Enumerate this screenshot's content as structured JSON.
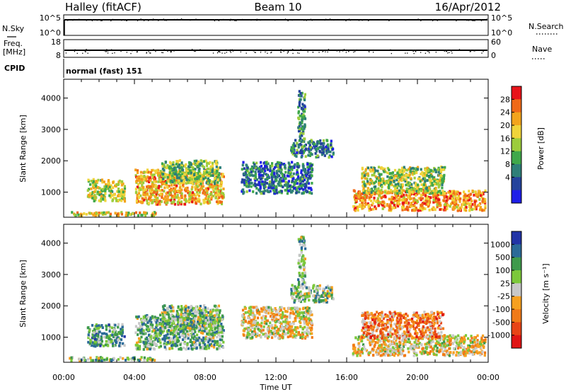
{
  "header": {
    "station": "Halley (fitACF)",
    "beam": "Beam 10",
    "date": "16/Apr/2012"
  },
  "top_panels": {
    "nsky_label": "N.Sky",
    "nsky_ticks": [
      "10^5",
      "10^0"
    ],
    "nsearch_label": "N.Search",
    "nsearch_ticks": [
      "10^5",
      "10^0"
    ],
    "freq_label": "Freq.",
    "freq_unit": "[MHz]",
    "freq_ticks": [
      "18",
      "8"
    ],
    "nave_label": "Nave",
    "nave_ticks": [
      "60",
      "0"
    ],
    "cpid_label": "CPID",
    "cpid_value": "normal (fast) 151"
  },
  "chart_data": [
    {
      "type": "heatmap",
      "name": "power-panel",
      "ylabel": "Slant Range [km]",
      "xlabel": "Time UT",
      "x_ticks": [
        "00:00",
        "04:00",
        "08:00",
        "12:00",
        "16:00",
        "20:00",
        "00:00"
      ],
      "xlim_hours": [
        0,
        24
      ],
      "y_ticks": [
        1000,
        2000,
        3000,
        4000
      ],
      "ylim": [
        200,
        4600
      ],
      "colorbar_label": "Power [dB]",
      "colorbar_ticks": [
        "28",
        "24",
        "20",
        "16",
        "12",
        "8",
        "4"
      ],
      "colorbar_colors": [
        "#e8141a",
        "#f06a18",
        "#f3a41c",
        "#f0d43a",
        "#9ccc3c",
        "#3fa84a",
        "#2e7f78",
        "#24439c",
        "#1e1ee8"
      ],
      "regions": [
        {
          "t0": 1.3,
          "t1": 3.4,
          "r0": 750,
          "r1": 1450,
          "level": 0.55
        },
        {
          "t0": 4.0,
          "t1": 9.0,
          "r0": 650,
          "r1": 1750,
          "level": 0.7
        },
        {
          "t0": 5.5,
          "t1": 8.8,
          "r0": 1300,
          "r1": 2050,
          "level": 0.45
        },
        {
          "t0": 10.0,
          "t1": 14.0,
          "r0": 1000,
          "r1": 2000,
          "level": 0.25
        },
        {
          "t0": 12.8,
          "t1": 15.2,
          "r0": 2150,
          "r1": 2700,
          "level": 0.3
        },
        {
          "t0": 13.2,
          "t1": 13.6,
          "r0": 2700,
          "r1": 4300,
          "level": 0.3
        },
        {
          "t0": 16.3,
          "t1": 23.8,
          "r0": 450,
          "r1": 1100,
          "level": 0.75
        },
        {
          "t0": 16.8,
          "t1": 21.5,
          "r0": 1000,
          "r1": 1850,
          "level": 0.5
        },
        {
          "t0": 0.2,
          "t1": 5.2,
          "r0": 250,
          "r1": 400,
          "level": 0.6
        }
      ]
    },
    {
      "type": "heatmap",
      "name": "velocity-panel",
      "ylabel": "Slant Range [km]",
      "xlabel": "Time UT",
      "x_ticks": [
        "00:00",
        "04:00",
        "08:00",
        "12:00",
        "16:00",
        "20:00",
        "00:00"
      ],
      "xlim_hours": [
        0,
        24
      ],
      "y_ticks": [
        1000,
        2000,
        3000,
        4000
      ],
      "ylim": [
        200,
        4600
      ],
      "colorbar_label": "Velocity [m s⁻¹]",
      "colorbar_ticks": [
        "1000",
        "500",
        "100",
        "25",
        "-25",
        "-100",
        "-500",
        "-1000"
      ],
      "colorbar_colors": [
        "#2234a6",
        "#2b6a98",
        "#3f9a4c",
        "#7cc83a",
        "#c8c8c8",
        "#f6a020",
        "#f07a18",
        "#e84416",
        "#e01414"
      ],
      "regions": [
        {
          "t0": 1.3,
          "t1": 3.4,
          "r0": 750,
          "r1": 1450,
          "level": 0.7
        },
        {
          "t0": 4.0,
          "t1": 9.0,
          "r0": 650,
          "r1": 1750,
          "level": 0.65
        },
        {
          "t0": 5.5,
          "t1": 8.8,
          "r0": 1300,
          "r1": 2050,
          "level": 0.62
        },
        {
          "t0": 10.0,
          "t1": 14.0,
          "r0": 1000,
          "r1": 2000,
          "level": 0.47
        },
        {
          "t0": 12.8,
          "t1": 15.2,
          "r0": 2150,
          "r1": 2700,
          "level": 0.62
        },
        {
          "t0": 13.2,
          "t1": 13.6,
          "r0": 2700,
          "r1": 4300,
          "level": 0.66
        },
        {
          "t0": 16.3,
          "t1": 23.8,
          "r0": 450,
          "r1": 1100,
          "level": 0.47
        },
        {
          "t0": 16.8,
          "t1": 21.5,
          "r0": 1000,
          "r1": 1850,
          "level": 0.3
        },
        {
          "t0": 0.2,
          "t1": 5.2,
          "r0": 250,
          "r1": 400,
          "level": 0.6
        }
      ]
    }
  ]
}
